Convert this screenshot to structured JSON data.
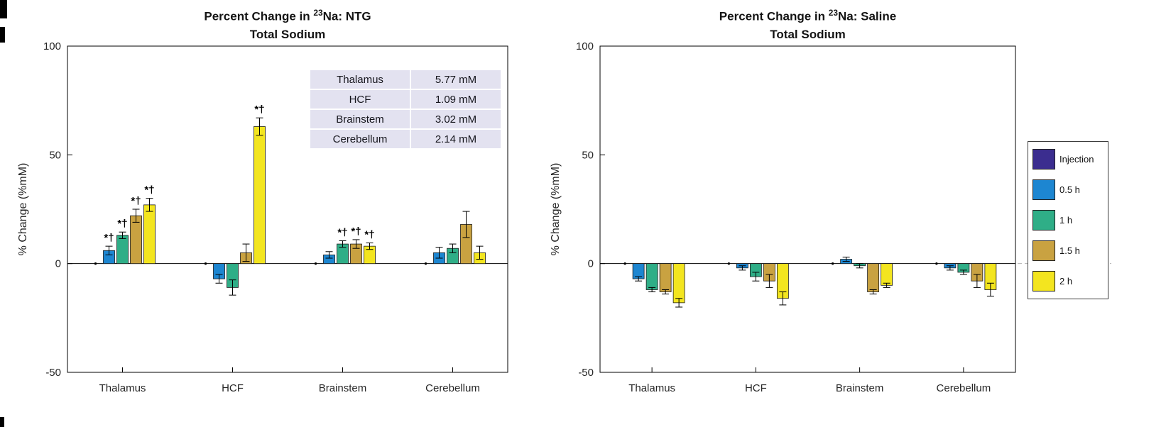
{
  "colors": {
    "injection": "#3b2d8f",
    "half_hour": "#1d86d1",
    "one_hour": "#2fae87",
    "ninety_min": "#c9a241",
    "two_hour": "#f3e51f",
    "table_bg": "#e3e2f0",
    "axis_text": "#262626",
    "zero_dash": "#b3b3b3"
  },
  "legend": {
    "position": "right-outside",
    "items": [
      {
        "label": "Injection",
        "color": "#3b2d8f"
      },
      {
        "label": "0.5 h",
        "color": "#1d86d1"
      },
      {
        "label": "1 h",
        "color": "#2fae87"
      },
      {
        "label": "1.5 h",
        "color": "#c9a241"
      },
      {
        "label": "2 h",
        "color": "#f3e51f"
      }
    ]
  },
  "chart_data": [
    {
      "type": "bar",
      "title_prefix": "Percent Change in ",
      "title_sup": "23",
      "title_rest": "Na: NTG",
      "subtitle": "Total Sodium",
      "ylabel": "% Change (%mM)",
      "ylim": [
        -50,
        100
      ],
      "yticks": [
        100,
        50,
        0,
        -50
      ],
      "grid": false,
      "sig_marker": "*†",
      "categories": [
        "Thalamus",
        "HCF",
        "Brainstem",
        "Cerebellum"
      ],
      "series": [
        {
          "name": "Injection",
          "color": "#3b2d8f",
          "values": [
            0,
            0,
            0,
            0
          ],
          "errors": [
            0,
            0,
            0,
            0
          ],
          "sig": [
            false,
            false,
            false,
            false
          ]
        },
        {
          "name": "0.5 h",
          "color": "#1d86d1",
          "values": [
            6,
            -7,
            4,
            5
          ],
          "errors": [
            2,
            2,
            1.5,
            2.5
          ],
          "sig": [
            true,
            false,
            false,
            false
          ]
        },
        {
          "name": "1 h",
          "color": "#2fae87",
          "values": [
            13,
            -11,
            9,
            7
          ],
          "errors": [
            1.5,
            3.5,
            1.5,
            2
          ],
          "sig": [
            true,
            false,
            true,
            false
          ]
        },
        {
          "name": "1.5 h",
          "color": "#c9a241",
          "values": [
            22,
            5,
            9,
            18
          ],
          "errors": [
            3,
            4,
            2,
            6
          ],
          "sig": [
            true,
            false,
            true,
            false
          ]
        },
        {
          "name": "2 h",
          "color": "#f3e51f",
          "values": [
            27,
            63,
            8,
            5
          ],
          "errors": [
            3,
            4,
            1.5,
            3
          ],
          "sig": [
            true,
            true,
            true,
            false
          ]
        }
      ],
      "inset_table": {
        "rows": [
          [
            "Thalamus",
            "5.77 mM"
          ],
          [
            "HCF",
            "1.09 mM"
          ],
          [
            "Brainstem",
            "3.02 mM"
          ],
          [
            "Cerebellum",
            "2.14 mM"
          ]
        ]
      },
      "zero_line_extends_right": false
    },
    {
      "type": "bar",
      "title_prefix": "Percent Change in ",
      "title_sup": "23",
      "title_rest": "Na: Saline",
      "subtitle": "Total Sodium",
      "ylabel": "% Change (%mM)",
      "ylim": [
        -50,
        100
      ],
      "yticks": [
        100,
        50,
        0,
        -50
      ],
      "grid": false,
      "sig_marker": "*†",
      "categories": [
        "Thalamus",
        "HCF",
        "Brainstem",
        "Cerebellum"
      ],
      "series": [
        {
          "name": "Injection",
          "color": "#3b2d8f",
          "values": [
            0,
            0,
            0,
            0
          ],
          "errors": [
            0,
            0,
            0,
            0
          ],
          "sig": [
            false,
            false,
            false,
            false
          ]
        },
        {
          "name": "0.5 h",
          "color": "#1d86d1",
          "values": [
            -7,
            -2,
            2,
            -2
          ],
          "errors": [
            1,
            1,
            1,
            1
          ],
          "sig": [
            false,
            false,
            false,
            false
          ]
        },
        {
          "name": "1 h",
          "color": "#2fae87",
          "values": [
            -12,
            -6,
            -1,
            -4
          ],
          "errors": [
            1,
            2,
            1,
            1
          ],
          "sig": [
            false,
            false,
            false,
            false
          ]
        },
        {
          "name": "1.5 h",
          "color": "#c9a241",
          "values": [
            -13,
            -8,
            -13,
            -8
          ],
          "errors": [
            1,
            3,
            1,
            3
          ],
          "sig": [
            false,
            false,
            false,
            false
          ]
        },
        {
          "name": "2 h",
          "color": "#f3e51f",
          "values": [
            -18,
            -16,
            -10,
            -12
          ],
          "errors": [
            2,
            3,
            1,
            3
          ],
          "sig": [
            false,
            false,
            false,
            false
          ]
        }
      ],
      "zero_line_extends_right": true
    }
  ]
}
